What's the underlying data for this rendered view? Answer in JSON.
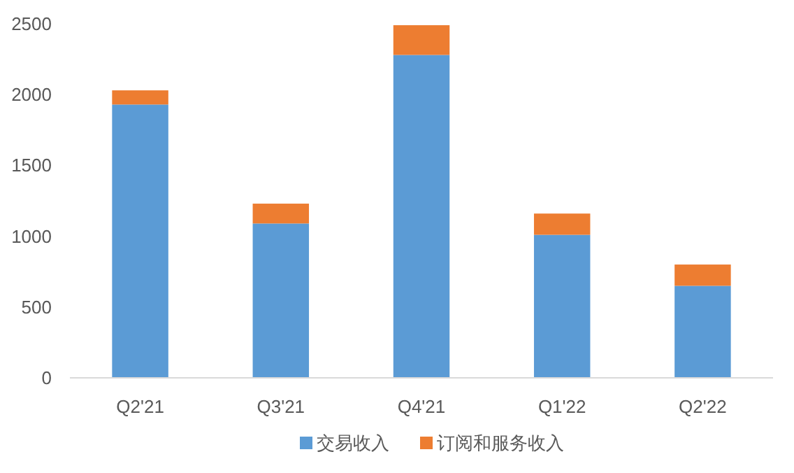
{
  "chart_data": {
    "type": "bar",
    "stacked": true,
    "categories": [
      "Q2'21",
      "Q3'21",
      "Q4'21",
      "Q1'22",
      "Q2'22"
    ],
    "series": [
      {
        "name": "交易收入",
        "color": "#5b9bd5",
        "values": [
          1930,
          1090,
          2280,
          1010,
          650
        ]
      },
      {
        "name": "订阅和服务收入",
        "color": "#ed7d31",
        "values": [
          100,
          140,
          210,
          150,
          150
        ]
      }
    ],
    "ylim": [
      0,
      2500
    ],
    "yticks": [
      0,
      500,
      1000,
      1500,
      2000,
      2500
    ],
    "grid": false,
    "legend": "bottom"
  }
}
